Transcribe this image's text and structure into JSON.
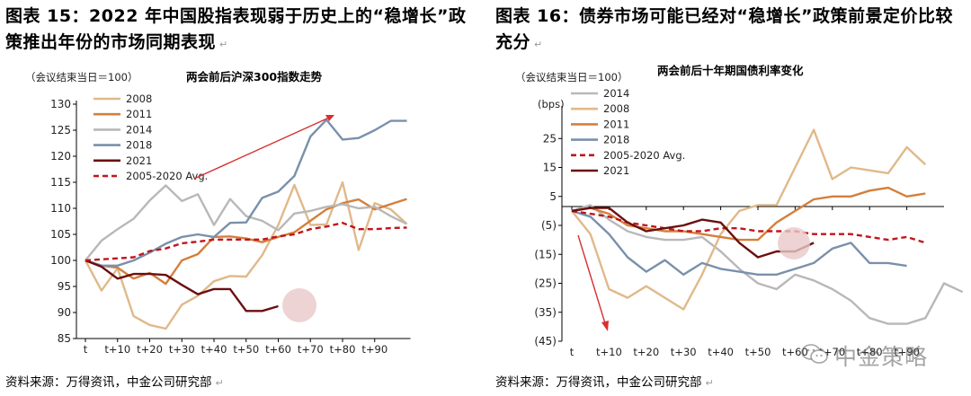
{
  "left": {
    "title": "图表 15：2022 年中国股指表现弱于历史上的“稳增长”政策推出年份的市场同期表现",
    "source": "资料来源：万得资讯，中金公司研究部"
  },
  "right": {
    "title": "图表 16：债券市场可能已经对“稳增长”政策前景定价比较充分",
    "source": "资料来源：万得资讯，中金公司研究部"
  },
  "watermark": "中金策略",
  "colors": {
    "c2008": "#e0b98a",
    "c2011": "#d47f3c",
    "c2014": "#b8b8b8",
    "c2018": "#7a90ab",
    "c2021": "#6b0f0f",
    "avg": "#c0161c",
    "arrow": "#d83030",
    "circle": "#e8c8c8",
    "negTick": "#d42020"
  },
  "chart_data": [
    {
      "type": "line",
      "title": "两会前后沪深300指数走势",
      "unit_label": "（会议结束当日＝100）",
      "xlabel": "",
      "ylabel": "",
      "x_tick_labels": [
        "t",
        "t+10",
        "t+20",
        "t+30",
        "t+40",
        "t+50",
        "t+60",
        "t+70",
        "t+80",
        "t+90"
      ],
      "ylim": [
        85,
        130
      ],
      "yticks": [
        85,
        90,
        95,
        100,
        105,
        110,
        115,
        120,
        125,
        130
      ],
      "legend": [
        "2008",
        "2011",
        "2014",
        "2018",
        "2021",
        "2005-2020 Avg."
      ],
      "series": [
        {
          "name": "2008",
          "color_key": "c2008",
          "dashed": false,
          "points": [
            [
              0,
              100
            ],
            [
              5,
              94.2
            ],
            [
              10,
              98.5
            ],
            [
              15,
              89.3
            ],
            [
              20,
              87.6
            ],
            [
              25,
              86.9
            ],
            [
              30,
              91.5
            ],
            [
              35,
              93.2
            ],
            [
              40,
              96
            ],
            [
              45,
              97
            ],
            [
              50,
              96.9
            ],
            [
              55,
              101
            ],
            [
              60,
              106.8
            ],
            [
              65,
              114.5
            ],
            [
              70,
              106.8
            ],
            [
              75,
              106.9
            ],
            [
              80,
              115
            ],
            [
              85,
              102
            ],
            [
              90,
              111
            ],
            [
              95,
              109.8
            ],
            [
              100,
              107
            ]
          ]
        },
        {
          "name": "2011",
          "color_key": "c2011",
          "dashed": false,
          "points": [
            [
              0,
              100
            ],
            [
              5,
              99
            ],
            [
              10,
              98.6
            ],
            [
              15,
              96.5
            ],
            [
              20,
              97.6
            ],
            [
              25,
              95.5
            ],
            [
              30,
              100
            ],
            [
              35,
              101.2
            ],
            [
              40,
              104.5
            ],
            [
              45,
              104.6
            ],
            [
              50,
              104.2
            ],
            [
              55,
              103.5
            ],
            [
              60,
              104.5
            ],
            [
              65,
              105.4
            ],
            [
              70,
              107.6
            ],
            [
              75,
              109.8
            ],
            [
              80,
              111
            ],
            [
              85,
              111.7
            ],
            [
              90,
              109.8
            ],
            [
              95,
              110.8
            ],
            [
              100,
              111.8
            ]
          ]
        },
        {
          "name": "2014",
          "color_key": "c2014",
          "dashed": false,
          "points": [
            [
              0,
              100
            ],
            [
              5,
              103.8
            ],
            [
              10,
              106
            ],
            [
              15,
              108
            ],
            [
              20,
              111.5
            ],
            [
              25,
              114.4
            ],
            [
              30,
              111.4
            ],
            [
              35,
              112.7
            ],
            [
              40,
              106.8
            ],
            [
              45,
              111.8
            ],
            [
              50,
              108.5
            ],
            [
              55,
              107.6
            ],
            [
              60,
              105.8
            ],
            [
              65,
              109
            ],
            [
              70,
              109.5
            ],
            [
              75,
              110.3
            ],
            [
              80,
              110.8
            ],
            [
              85,
              110
            ],
            [
              90,
              110.3
            ],
            [
              95,
              108.5
            ],
            [
              100,
              107
            ]
          ]
        },
        {
          "name": "2018",
          "color_key": "c2018",
          "dashed": false,
          "points": [
            [
              0,
              100
            ],
            [
              5,
              99
            ],
            [
              10,
              99
            ],
            [
              15,
              100
            ],
            [
              20,
              101.5
            ],
            [
              25,
              103.2
            ],
            [
              30,
              104.5
            ],
            [
              35,
              105
            ],
            [
              40,
              104.5
            ],
            [
              45,
              107.2
            ],
            [
              50,
              107.3
            ],
            [
              55,
              112
            ],
            [
              60,
              113.2
            ],
            [
              65,
              116.2
            ],
            [
              70,
              123.8
            ],
            [
              75,
              127
            ],
            [
              80,
              123.2
            ],
            [
              85,
              123.5
            ],
            [
              90,
              125
            ],
            [
              95,
              126.8
            ],
            [
              100,
              126.8
            ]
          ]
        },
        {
          "name": "2021",
          "color_key": "c2021",
          "dashed": false,
          "points": [
            [
              0,
              100
            ],
            [
              5,
              98.8
            ],
            [
              10,
              96.5
            ],
            [
              15,
              97.4
            ],
            [
              20,
              97.4
            ],
            [
              25,
              97.2
            ],
            [
              30,
              95.3
            ],
            [
              35,
              93.5
            ],
            [
              40,
              94.5
            ],
            [
              45,
              94.5
            ],
            [
              50,
              90.3
            ],
            [
              55,
              90.3
            ],
            [
              60,
              91.2
            ]
          ]
        },
        {
          "name": "2005-2020 Avg.",
          "color_key": "avg",
          "dashed": true,
          "points": [
            [
              0,
              100
            ],
            [
              5,
              100.2
            ],
            [
              10,
              100.4
            ],
            [
              15,
              100.6
            ],
            [
              20,
              101.8
            ],
            [
              25,
              102.3
            ],
            [
              30,
              103.3
            ],
            [
              35,
              103.6
            ],
            [
              40,
              104
            ],
            [
              45,
              104
            ],
            [
              50,
              104
            ],
            [
              55,
              104
            ],
            [
              60,
              104.6
            ],
            [
              65,
              105
            ],
            [
              70,
              106
            ],
            [
              75,
              106.5
            ],
            [
              80,
              107.2
            ],
            [
              85,
              106
            ],
            [
              90,
              106
            ],
            [
              95,
              106.2
            ],
            [
              100,
              106.3
            ]
          ]
        }
      ]
    },
    {
      "type": "line",
      "title": "两会前后十年期国债利率变化",
      "unit_label": "（会议结束当日＝100）",
      "ylabel": "(bps)",
      "xlabel": "",
      "x_tick_labels": [
        "t",
        "t+10",
        "t+20",
        "t+30",
        "t+40",
        "t+50",
        "t+60",
        "t+70",
        "t+80",
        "t+90"
      ],
      "ylim": [
        -45,
        35
      ],
      "yticks": [
        -45,
        -35,
        -25,
        -15,
        -5,
        5,
        15,
        25
      ],
      "ytick_labels": [
        "(45)",
        "(35)",
        "(25)",
        "(15)",
        "(5)",
        "5",
        "15",
        "25"
      ],
      "legend": [
        "2014",
        "2008",
        "2011",
        "2018",
        "2005-2020 Avg.",
        "2021"
      ],
      "series": [
        {
          "name": "2014",
          "color_key": "c2014",
          "dashed": false,
          "points": [
            [
              0,
              0
            ],
            [
              5,
              2
            ],
            [
              10,
              -3
            ],
            [
              15,
              -7
            ],
            [
              20,
              -9
            ],
            [
              25,
              -10
            ],
            [
              30,
              -10
            ],
            [
              35,
              -9
            ],
            [
              40,
              -14
            ],
            [
              45,
              -20
            ],
            [
              50,
              -25
            ],
            [
              55,
              -27
            ],
            [
              60,
              -22
            ],
            [
              65,
              -24
            ],
            [
              70,
              -27
            ],
            [
              75,
              -31
            ],
            [
              80,
              -37
            ],
            [
              85,
              -39
            ],
            [
              90,
              -39
            ],
            [
              95,
              -37
            ],
            [
              100,
              -25
            ],
            [
              105,
              -28
            ]
          ]
        },
        {
          "name": "2008",
          "color_key": "c2008",
          "dashed": false,
          "points": [
            [
              0,
              0
            ],
            [
              5,
              -8
            ],
            [
              10,
              -27
            ],
            [
              15,
              -30
            ],
            [
              20,
              -26
            ],
            [
              25,
              -30
            ],
            [
              30,
              -34
            ],
            [
              35,
              -22
            ],
            [
              40,
              -8
            ],
            [
              45,
              0
            ],
            [
              50,
              2
            ],
            [
              55,
              2
            ],
            [
              60,
              15
            ],
            [
              65,
              28
            ],
            [
              70,
              11
            ],
            [
              75,
              15
            ],
            [
              80,
              14
            ],
            [
              85,
              13
            ],
            [
              90,
              22
            ],
            [
              95,
              16
            ]
          ]
        },
        {
          "name": "2011",
          "color_key": "c2011",
          "dashed": false,
          "points": [
            [
              0,
              0
            ],
            [
              5,
              1
            ],
            [
              10,
              -1
            ],
            [
              15,
              -5
            ],
            [
              20,
              -6
            ],
            [
              25,
              -7
            ],
            [
              30,
              -7
            ],
            [
              35,
              -8
            ],
            [
              40,
              -9
            ],
            [
              45,
              -10
            ],
            [
              50,
              -10
            ],
            [
              55,
              -4
            ],
            [
              60,
              0
            ],
            [
              65,
              4
            ],
            [
              70,
              5
            ],
            [
              75,
              5
            ],
            [
              80,
              7
            ],
            [
              85,
              8
            ],
            [
              90,
              5
            ],
            [
              95,
              6
            ]
          ]
        },
        {
          "name": "2018",
          "color_key": "c2018",
          "dashed": false,
          "points": [
            [
              0,
              0
            ],
            [
              5,
              -2
            ],
            [
              10,
              -8
            ],
            [
              15,
              -16
            ],
            [
              20,
              -21
            ],
            [
              25,
              -17
            ],
            [
              30,
              -22
            ],
            [
              35,
              -18
            ],
            [
              40,
              -20
            ],
            [
              45,
              -21
            ],
            [
              50,
              -22
            ],
            [
              55,
              -22
            ],
            [
              60,
              -20
            ],
            [
              65,
              -18
            ],
            [
              70,
              -13
            ],
            [
              75,
              -11
            ],
            [
              80,
              -18
            ],
            [
              85,
              -18
            ],
            [
              90,
              -19
            ]
          ]
        },
        {
          "name": "2005-2020 Avg.",
          "color_key": "avg",
          "dashed": true,
          "points": [
            [
              0,
              0
            ],
            [
              5,
              -1
            ],
            [
              10,
              -2
            ],
            [
              15,
              -4
            ],
            [
              20,
              -5
            ],
            [
              25,
              -6
            ],
            [
              30,
              -7
            ],
            [
              35,
              -7
            ],
            [
              40,
              -6
            ],
            [
              45,
              -6
            ],
            [
              50,
              -7
            ],
            [
              55,
              -7
            ],
            [
              60,
              -7
            ],
            [
              65,
              -8
            ],
            [
              70,
              -8
            ],
            [
              75,
              -8
            ],
            [
              80,
              -9
            ],
            [
              85,
              -10
            ],
            [
              90,
              -9
            ],
            [
              95,
              -11
            ]
          ]
        },
        {
          "name": "2021",
          "color_key": "c2021",
          "dashed": false,
          "points": [
            [
              0,
              0
            ],
            [
              5,
              1
            ],
            [
              10,
              1
            ],
            [
              15,
              -4
            ],
            [
              20,
              -7
            ],
            [
              25,
              -6
            ],
            [
              30,
              -5
            ],
            [
              35,
              -3
            ],
            [
              40,
              -4
            ],
            [
              45,
              -11
            ],
            [
              50,
              -16
            ],
            [
              55,
              -14
            ],
            [
              60,
              -14
            ],
            [
              65,
              -11
            ]
          ]
        }
      ]
    }
  ]
}
